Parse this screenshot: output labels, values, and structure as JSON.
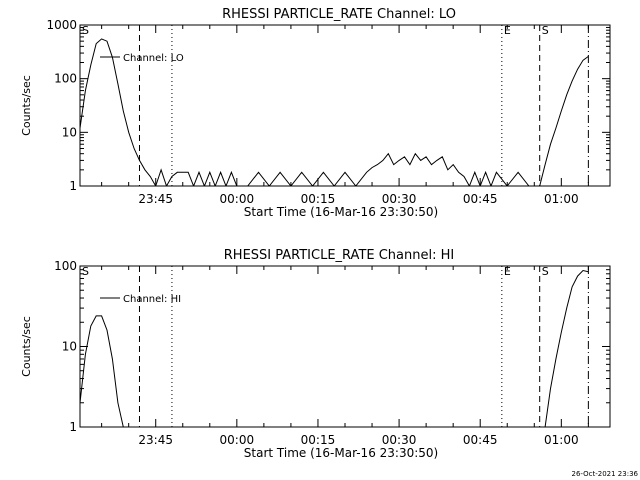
{
  "chart_data": [
    {
      "type": "line",
      "title": "RHESSI PARTICLE_RATE Channel: LO",
      "xlabel": "Start Time (16-Mar-16 23:30:50)",
      "ylabel": "Counts/sec",
      "yscale": "log",
      "ylim": [
        1,
        1000
      ],
      "xlim": [
        "23:31",
        "01:09"
      ],
      "x_ticks": [
        "23:45",
        "00:00",
        "00:15",
        "00:30",
        "00:45",
        "01:00"
      ],
      "y_ticks": [
        "1",
        "10",
        "100",
        "1000"
      ],
      "legend": {
        "label": "Channel: LO",
        "placement": "top-left"
      },
      "markers": [
        {
          "label": "S",
          "time": "23:31",
          "style": "dash-dot"
        },
        {
          "label": "",
          "time": "23:42",
          "style": "dashed"
        },
        {
          "label": "",
          "time": "23:48",
          "style": "dotted"
        },
        {
          "label": "E",
          "time": "00:49",
          "style": "dotted"
        },
        {
          "label": "S",
          "time": "00:56",
          "style": "dashed"
        },
        {
          "label": "",
          "time": "01:05",
          "style": "dash-dot"
        }
      ],
      "series": [
        {
          "x": [
            "23:31",
            "23:32",
            "23:33",
            "23:34",
            "23:35",
            "23:36",
            "23:37",
            "23:38",
            "23:39",
            "23:40",
            "23:41",
            "23:42",
            "23:43",
            "23:44",
            "23:45",
            "23:46",
            "23:47",
            "23:48",
            "23:49",
            "23:50",
            "23:51",
            "23:52",
            "23:53",
            "23:54",
            "23:55",
            "23:56",
            "23:57",
            "23:58",
            "23:59",
            "00:00",
            "00:02",
            "00:04",
            "00:06",
            "00:08",
            "00:10",
            "00:12",
            "00:14",
            "00:16",
            "00:18",
            "00:20",
            "00:22",
            "00:24",
            "00:25",
            "00:26",
            "00:27",
            "00:28",
            "00:29",
            "00:30",
            "00:31",
            "00:32",
            "00:33",
            "00:34",
            "00:35",
            "00:36",
            "00:37",
            "00:38",
            "00:39",
            "00:40",
            "00:41",
            "00:42",
            "00:43",
            "00:44",
            "00:45",
            "00:46",
            "00:47",
            "00:48",
            "00:50",
            "00:52",
            "00:54",
            "00:55",
            "00:56",
            "00:57",
            "00:58",
            "00:59",
            "01:00",
            "01:01",
            "01:02",
            "01:03",
            "01:04",
            "01:05"
          ],
          "y": [
            12,
            60,
            180,
            450,
            550,
            500,
            250,
            80,
            25,
            10,
            5,
            3,
            2,
            1.5,
            1,
            2,
            1,
            1.5,
            1.8,
            1.8,
            1.8,
            1,
            1.8,
            1,
            1.8,
            1,
            1.8,
            1,
            1.8,
            1,
            1,
            1.8,
            1,
            1.8,
            1,
            1.8,
            1,
            1.8,
            1,
            1.8,
            1,
            1.8,
            2.2,
            2.5,
            3,
            4,
            2.5,
            3,
            3.5,
            2.5,
            4,
            3,
            3.5,
            2.5,
            3,
            3.5,
            2,
            2.5,
            1.8,
            1.5,
            1,
            1.8,
            1,
            1.8,
            1,
            1.8,
            1,
            1.8,
            1,
            1,
            1,
            2.5,
            6,
            12,
            25,
            50,
            90,
            150,
            220,
            260
          ]
        }
      ]
    },
    {
      "type": "line",
      "title": "RHESSI PARTICLE_RATE Channel: HI",
      "xlabel": "Start Time (16-Mar-16 23:30:50)",
      "ylabel": "Counts/sec",
      "yscale": "log",
      "ylim": [
        1,
        100
      ],
      "xlim": [
        "23:31",
        "01:09"
      ],
      "x_ticks": [
        "23:45",
        "00:00",
        "00:15",
        "00:30",
        "00:45",
        "01:00"
      ],
      "y_ticks": [
        "1",
        "10",
        "100"
      ],
      "legend": {
        "label": "Channel: HI",
        "placement": "top-left"
      },
      "markers": [
        {
          "label": "S",
          "time": "23:31",
          "style": "dash-dot"
        },
        {
          "label": "",
          "time": "23:42",
          "style": "dashed"
        },
        {
          "label": "",
          "time": "23:48",
          "style": "dotted"
        },
        {
          "label": "E",
          "time": "00:49",
          "style": "dotted"
        },
        {
          "label": "S",
          "time": "00:56",
          "style": "dashed"
        },
        {
          "label": "",
          "time": "01:05",
          "style": "dash-dot"
        }
      ],
      "series": [
        {
          "x": [
            "23:31",
            "23:32",
            "23:33",
            "23:34",
            "23:35",
            "23:36",
            "23:37",
            "23:38",
            "23:39",
            "00:57",
            "00:58",
            "00:59",
            "01:00",
            "01:01",
            "01:02",
            "01:03",
            "01:04",
            "01:05"
          ],
          "y": [
            2,
            8,
            18,
            24,
            24,
            16,
            7,
            2,
            1,
            1,
            3,
            7,
            15,
            30,
            55,
            75,
            88,
            85
          ]
        }
      ]
    }
  ],
  "timestamp": "26-Oct-2021 23:36"
}
